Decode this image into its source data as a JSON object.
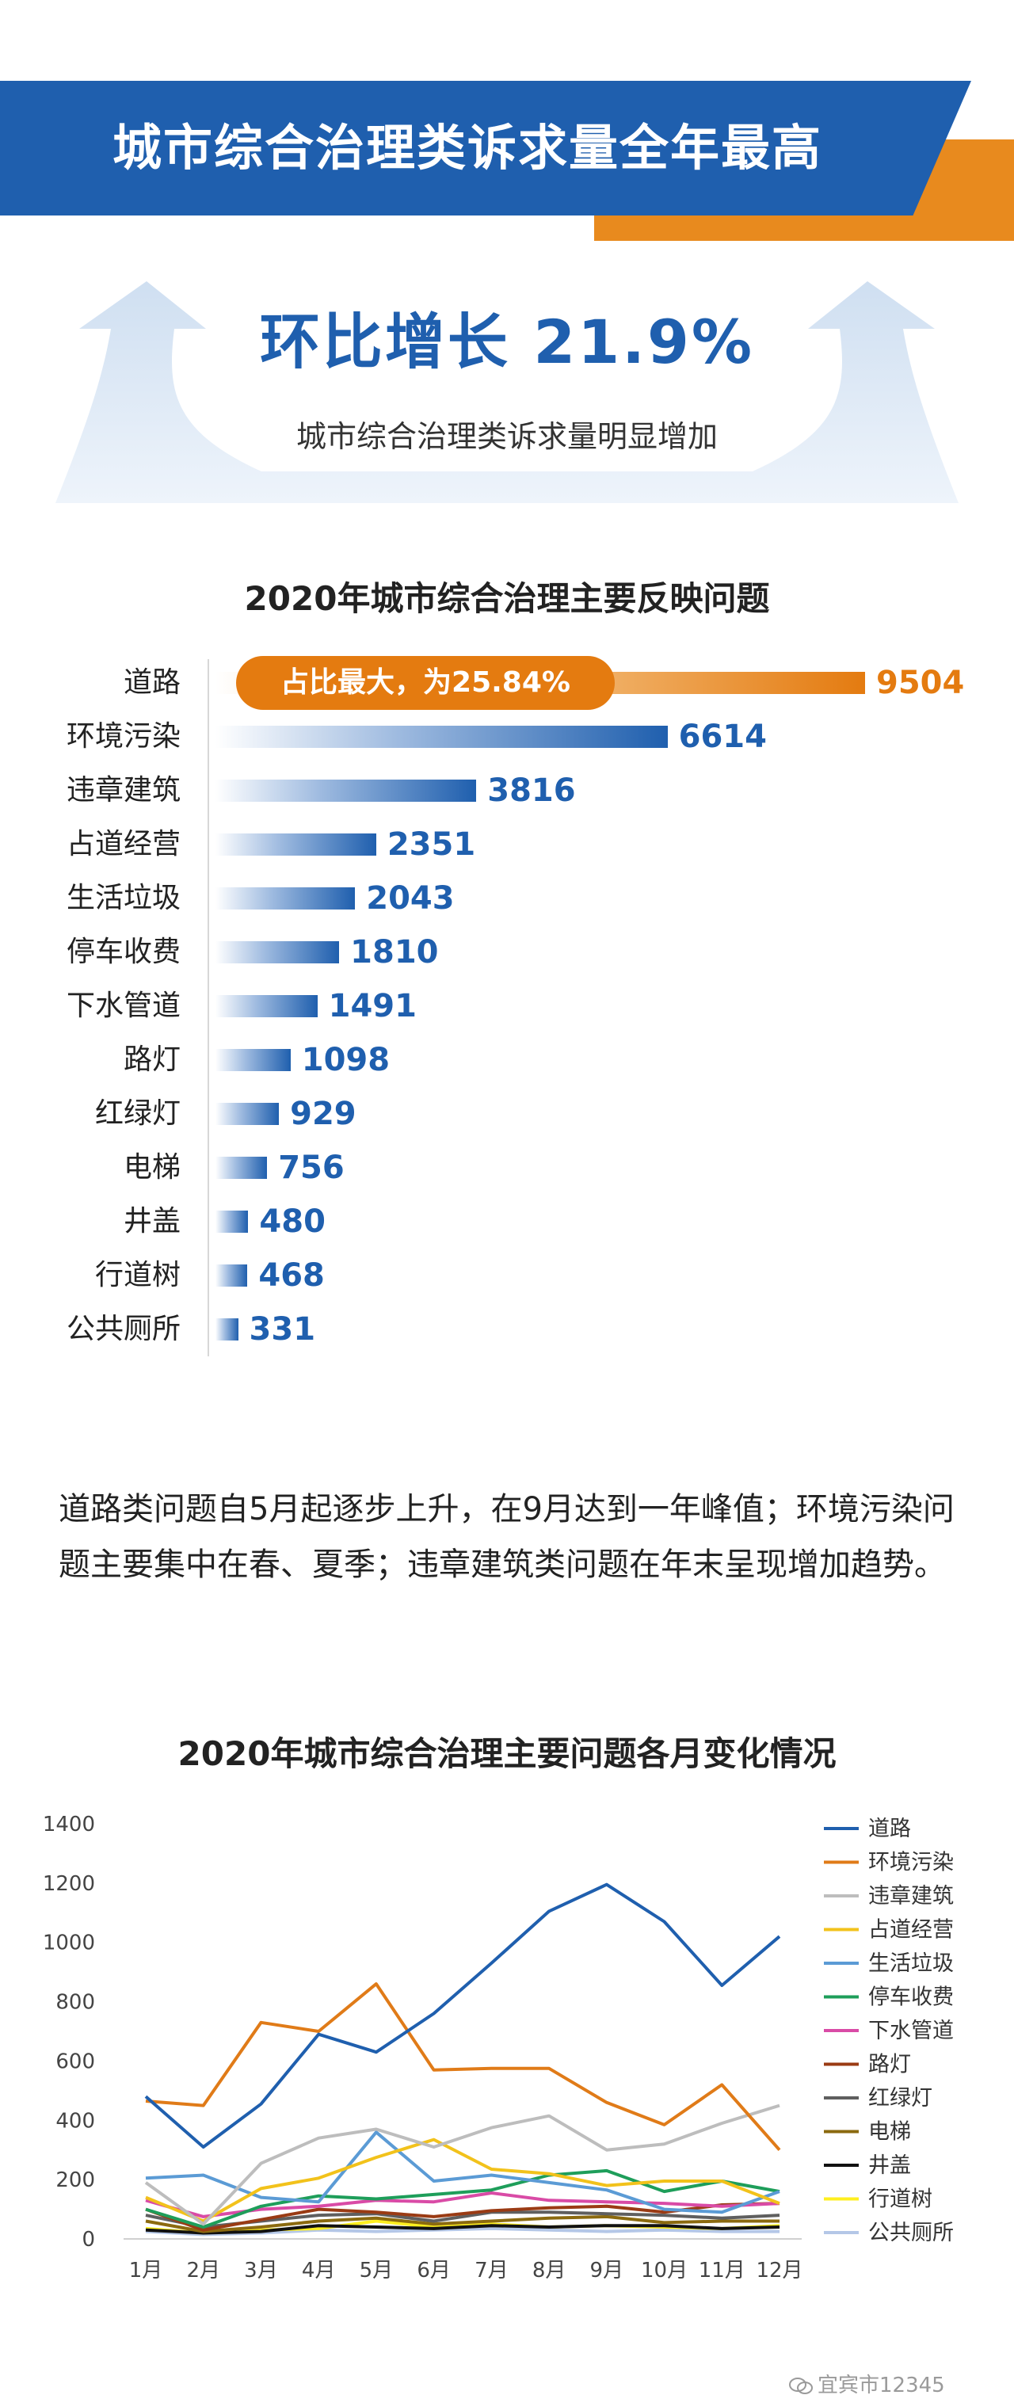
{
  "header": {
    "title": "城市综合治理类诉求量全年最高"
  },
  "growth": {
    "title": "环比增长 21.9%",
    "subtitle": "城市综合治理类诉求量明显增加"
  },
  "colors": {
    "primary": "#1f5fae",
    "accent": "#e88a1e"
  },
  "chart_data": [
    {
      "type": "bar",
      "orientation": "horizontal",
      "title": "2020年城市综合治理主要反映问题",
      "categories": [
        "道路",
        "环境污染",
        "违章建筑",
        "占道经营",
        "生活垃圾",
        "停车收费",
        "下水管道",
        "路灯",
        "红绿灯",
        "电梯",
        "井盖",
        "行道树",
        "公共厕所"
      ],
      "values": [
        9504,
        6614,
        3816,
        2351,
        2043,
        1810,
        1491,
        1098,
        929,
        756,
        480,
        468,
        331
      ],
      "annotation": "占比最大，为25.84%"
    },
    {
      "type": "line",
      "title": "2020年城市综合治理主要问题各月变化情况",
      "x": [
        "1月",
        "2月",
        "3月",
        "4月",
        "5月",
        "6月",
        "7月",
        "8月",
        "9月",
        "10月",
        "11月",
        "12月"
      ],
      "ylim": [
        0,
        1400
      ],
      "yticks": [
        0,
        200,
        400,
        600,
        800,
        1000,
        1200,
        1400
      ],
      "grid": false,
      "legend": "right",
      "series": [
        {
          "name": "道路",
          "color": "#1f5fae",
          "values": [
            480,
            310,
            455,
            690,
            630,
            760,
            930,
            1105,
            1195,
            1070,
            855,
            1020
          ]
        },
        {
          "name": "环境污染",
          "color": "#e07b18",
          "values": [
            465,
            450,
            730,
            700,
            860,
            570,
            575,
            575,
            460,
            385,
            520,
            300
          ]
        },
        {
          "name": "违章建筑",
          "color": "#bdbdbd",
          "values": [
            190,
            50,
            255,
            340,
            370,
            310,
            375,
            415,
            300,
            320,
            390,
            450
          ]
        },
        {
          "name": "占道经营",
          "color": "#f2c21b",
          "values": [
            140,
            60,
            170,
            205,
            275,
            335,
            235,
            220,
            180,
            195,
            195,
            120
          ]
        },
        {
          "name": "生活垃圾",
          "color": "#5b9bd5",
          "values": [
            205,
            215,
            140,
            125,
            360,
            195,
            215,
            190,
            165,
            100,
            90,
            160
          ]
        },
        {
          "name": "停车收费",
          "color": "#1e9e5a",
          "values": [
            100,
            40,
            110,
            145,
            135,
            150,
            165,
            215,
            230,
            160,
            195,
            160
          ]
        },
        {
          "name": "下水管道",
          "color": "#d94ba6",
          "values": [
            130,
            75,
            100,
            110,
            130,
            125,
            155,
            130,
            125,
            120,
            110,
            120
          ]
        },
        {
          "name": "路灯",
          "color": "#9a3b14",
          "values": [
            100,
            30,
            65,
            100,
            90,
            75,
            95,
            105,
            110,
            90,
            115,
            120
          ]
        },
        {
          "name": "红绿灯",
          "color": "#5f5f5f",
          "values": [
            80,
            40,
            60,
            80,
            85,
            60,
            90,
            90,
            85,
            80,
            70,
            80
          ]
        },
        {
          "name": "电梯",
          "color": "#8b6a0f",
          "values": [
            60,
            25,
            40,
            60,
            70,
            50,
            60,
            70,
            75,
            55,
            60,
            60
          ]
        },
        {
          "name": "井盖",
          "color": "#111111",
          "values": [
            30,
            20,
            25,
            45,
            40,
            35,
            45,
            40,
            45,
            45,
            35,
            40
          ]
        },
        {
          "name": "行道树",
          "color": "#ffef1f",
          "values": [
            35,
            20,
            30,
            35,
            60,
            40,
            50,
            40,
            45,
            40,
            35,
            45
          ]
        },
        {
          "name": "公共厕所",
          "color": "#b4c7e7",
          "values": [
            25,
            15,
            20,
            30,
            25,
            30,
            35,
            30,
            25,
            30,
            25,
            25
          ]
        }
      ]
    }
  ],
  "summary": "道路类问题自5月起逐步上升，在9月达到一年峰值；环境污染问题主要集中在春、夏季；违章建筑类问题在年末呈现增加趋势。",
  "watermark": "宜宾市12345"
}
